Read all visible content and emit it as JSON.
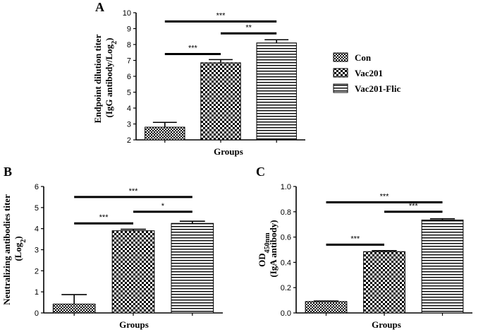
{
  "chart_data": [
    {
      "panel": "A",
      "type": "bar",
      "categories": [
        "Con",
        "Vac201",
        "Vac201-Flic"
      ],
      "values": [
        2.8,
        6.85,
        8.1
      ],
      "errors": [
        0.3,
        0.2,
        0.2
      ],
      "ylabel_line1": "Endpoint dilution titer",
      "ylabel_pre": "(IgG antibody/Log",
      "ylabel_sub": "2",
      "ylabel_post": ")",
      "xlabel": "Groups",
      "ylim": [
        2,
        10
      ],
      "ticks": [
        "2",
        "3",
        "4",
        "5",
        "6",
        "7",
        "8",
        "9",
        "10"
      ],
      "significance": [
        {
          "from": 0,
          "to": 1,
          "label": "***",
          "y": 7.4
        },
        {
          "from": 1,
          "to": 2,
          "label": "**",
          "y": 8.7
        },
        {
          "from": 0,
          "to": 2,
          "label": "***",
          "y": 9.45
        }
      ],
      "patterns": [
        "cross",
        "checker",
        "hstripe"
      ]
    },
    {
      "panel": "B",
      "type": "bar",
      "categories": [
        "Con",
        "Vac201",
        "Vac201-Flic"
      ],
      "values": [
        0.42,
        3.9,
        4.25
      ],
      "errors": [
        0.45,
        0.07,
        0.1
      ],
      "ylabel_line1": "Neutralizing antibodies titer",
      "ylabel_pre": "(Log",
      "ylabel_sub": "2",
      "ylabel_post": ")",
      "xlabel": "Groups",
      "ylim": [
        0,
        6
      ],
      "ticks": [
        "0",
        "1",
        "2",
        "3",
        "4",
        "5",
        "6"
      ],
      "significance": [
        {
          "from": 0,
          "to": 1,
          "label": "***",
          "y": 4.25
        },
        {
          "from": 1,
          "to": 2,
          "label": "*",
          "y": 4.8
        },
        {
          "from": 0,
          "to": 2,
          "label": "***",
          "y": 5.5
        }
      ],
      "patterns": [
        "cross",
        "checker",
        "hstripe"
      ]
    },
    {
      "panel": "C",
      "type": "bar",
      "categories": [
        "Con",
        "Vac201",
        "Vac201-Flic"
      ],
      "values": [
        0.09,
        0.485,
        0.735
      ],
      "errors": [
        0.004,
        0.008,
        0.01
      ],
      "ylabel_pre": "OD",
      "ylabel_sub": "450nm",
      "ylabel_line2": "(IgA antibody)",
      "xlabel": "Groups",
      "ylim": [
        0,
        1.0
      ],
      "ticks": [
        "0.0",
        "0.2",
        "0.4",
        "0.6",
        "0.8",
        "1.0"
      ],
      "significance": [
        {
          "from": 0,
          "to": 1,
          "label": "***",
          "y": 0.54
        },
        {
          "from": 1,
          "to": 2,
          "label": "***",
          "y": 0.8
        },
        {
          "from": 0,
          "to": 2,
          "label": "***",
          "y": 0.875
        }
      ],
      "patterns": [
        "cross",
        "checker",
        "hstripe"
      ]
    }
  ],
  "legend": {
    "placement": "right",
    "items": [
      {
        "label": "Con",
        "pattern": "cross"
      },
      {
        "label": "Vac201",
        "pattern": "checker"
      },
      {
        "label": "Vac201-Flic",
        "pattern": "hstripe"
      }
    ]
  }
}
